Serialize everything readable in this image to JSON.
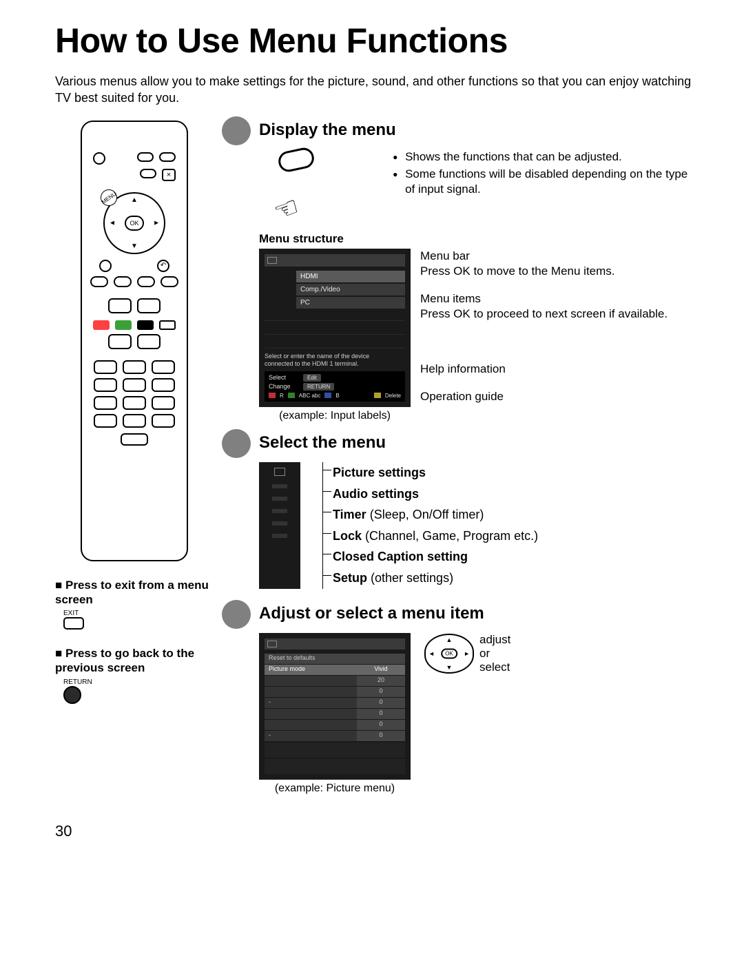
{
  "page": {
    "title": "How to Use Menu Functions",
    "intro": "Various menus allow you to make settings for the picture, sound, and other functions so that you can enjoy watching TV best suited for you.",
    "number": "30"
  },
  "step1": {
    "title": "Display the menu",
    "bullets": [
      "Shows the functions that can be adjusted.",
      "Some functions will be disabled depending on the type of input signal."
    ],
    "menu_structure_label": "Menu structure",
    "osd_items": [
      "HDMI",
      "Comp./Video",
      "PC"
    ],
    "osd_help1": "Select or enter the name of the device",
    "osd_help2": "connected to the HDMI 1 terminal.",
    "opguide": {
      "select": "Select",
      "change": "Change",
      "edit": "Edit",
      "return": "RETURN",
      "abc": "ABC   abc",
      "delete": "Delete",
      "r": "R",
      "g": "G",
      "b": "B",
      "y": "Y"
    },
    "example": "(example: Input labels)",
    "annotations": {
      "menubar": "Menu bar",
      "menubar_sub": "Press OK to move to the Menu items.",
      "menuitems": "Menu items",
      "menuitems_sub": "Press OK to proceed to next screen if available.",
      "help": "Help information",
      "opguide": "Operation guide"
    }
  },
  "step2": {
    "title": "Select the menu",
    "items": [
      {
        "bold": "Picture settings",
        "rest": ""
      },
      {
        "bold": "Audio settings",
        "rest": ""
      },
      {
        "bold": "Timer",
        "rest": " (Sleep, On/Off timer)"
      },
      {
        "bold": "Lock",
        "rest": " (Channel, Game, Program etc.)"
      },
      {
        "bold": "Closed Caption setting",
        "rest": ""
      },
      {
        "bold": "Setup",
        "rest": " (other settings)"
      }
    ]
  },
  "step3": {
    "title": "Adjust or select a menu item",
    "reset": "Reset to defaults",
    "rows": [
      {
        "name": "Picture mode",
        "val": "Vivid",
        "sel": true
      },
      {
        "name": "",
        "val": "20"
      },
      {
        "name": "",
        "val": "0"
      },
      {
        "name": "-",
        "val": "0"
      },
      {
        "name": "",
        "val": "0"
      },
      {
        "name": "",
        "val": "0"
      },
      {
        "name": "-",
        "val": "0"
      }
    ],
    "example": "(example:  Picture menu)",
    "nav_label1": "adjust",
    "nav_label2": "or",
    "nav_label3": "select"
  },
  "hints": {
    "exit_title": "Press to exit from a menu screen",
    "exit_label": "EXIT",
    "return_title": "Press to go back to the previous screen",
    "return_label": "RETURN"
  },
  "remote": {
    "ok": "OK",
    "menu": "MENU"
  },
  "colors": {
    "badge": "#808080",
    "osd_bg": "#1a1a1a"
  }
}
